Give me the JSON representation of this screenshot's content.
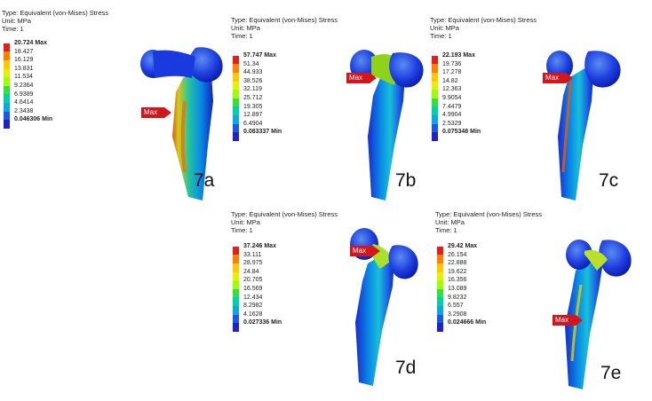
{
  "palette": [
    "#e0201a",
    "#ff7f00",
    "#ffc800",
    "#e6f000",
    "#9fff00",
    "#31e23c",
    "#00d2a8",
    "#0aa6e6",
    "#1a58e6",
    "#1e22c8"
  ],
  "panels": [
    {
      "id": "7a",
      "header": {
        "line1": "Type: Equivalent (von-Mises) Stress",
        "line2": "Unit: MPa",
        "line3": "Time: 1"
      },
      "scale": {
        "max": "20.724 Max",
        "values": [
          "18.427",
          "16.129",
          "13.831",
          "11.534",
          "9.2364",
          "6.9389",
          "4.6414",
          "2.3438"
        ],
        "min": "0.046306 Min"
      },
      "max_tag": "Max",
      "label": "7a"
    },
    {
      "id": "7b",
      "header": {
        "line1": "Type: Equivalent (von-Mises) Stress",
        "line2": "Unit: MPa",
        "line3": "Time: 1"
      },
      "scale": {
        "max": "57.747 Max",
        "values": [
          "51.34",
          "44.933",
          "38.526",
          "32.119",
          "25.712",
          "19.305",
          "12.897",
          "6.4904"
        ],
        "min": "0.083337 Min"
      },
      "max_tag": "Max",
      "label": "7b"
    },
    {
      "id": "7c",
      "header": {
        "line1": "Type: Equivalent (von-Mises) Stress",
        "line2": "Unit: MPa",
        "line3": "Time: 1"
      },
      "scale": {
        "max": "22.193 Max",
        "values": [
          "19.736",
          "17.278",
          "14.82",
          "12.363",
          "9.9054",
          "7.4479",
          "4.9904",
          "2.5329"
        ],
        "min": "0.075348 Min"
      },
      "max_tag": "Max",
      "label": "7c"
    },
    {
      "id": "7d",
      "header": {
        "line1": "Type: Equivalent (von-Mises) Stress",
        "line2": "Unit: MPa",
        "line3": "Time: 1"
      },
      "scale": {
        "max": "37.246 Max",
        "values": [
          "33.111",
          "28.975",
          "24.84",
          "20.705",
          "16.569",
          "12.434",
          "8.2982",
          "4.1628"
        ],
        "min": "0.027336 Min"
      },
      "max_tag": "Max",
      "label": "7d"
    },
    {
      "id": "7e",
      "header": {
        "line1": "Type: Equivalent (von-Mises) Stress",
        "line2": "Unit: MPa",
        "line3": "Time: 1"
      },
      "scale": {
        "max": "29.42 Max",
        "values": [
          "26.154",
          "22.888",
          "19.622",
          "16.356",
          "13.089",
          "9.8232",
          "6.557",
          "3.2908"
        ],
        "min": "0.024666 Min"
      },
      "max_tag": "Max",
      "label": "7e"
    }
  ]
}
